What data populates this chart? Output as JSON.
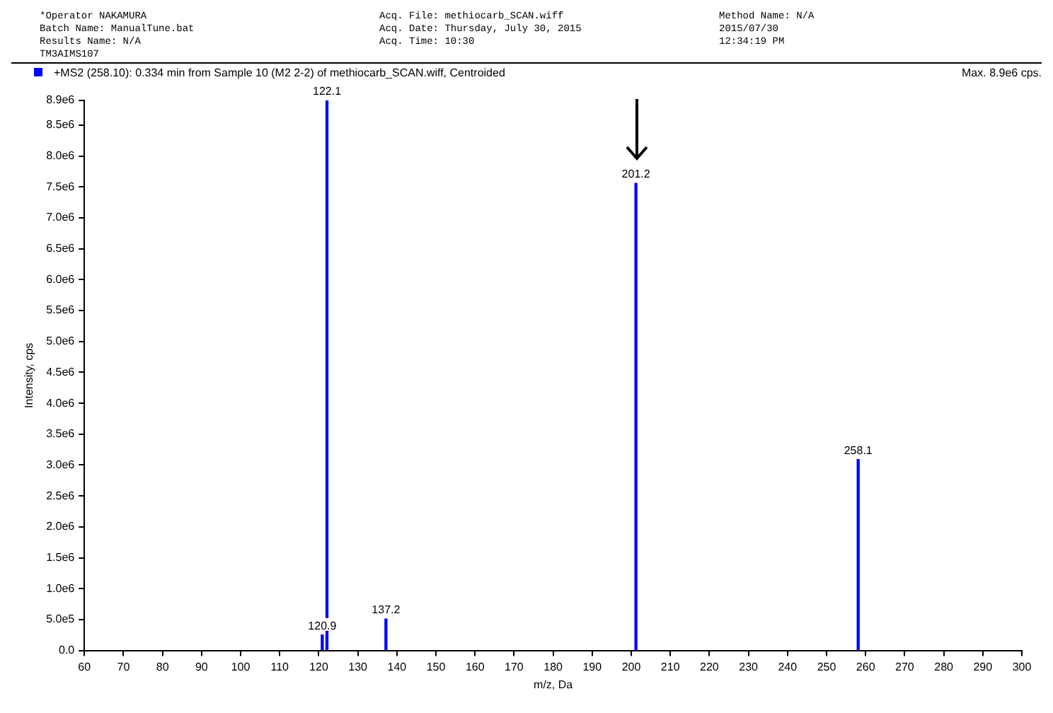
{
  "chart_data": {
    "type": "bar",
    "title": "+MS2 (258.10): 0.334 min from Sample 10 (M2 2-2) of methiocarb_SCAN.wiff, Centroided",
    "xlabel": "m/z, Da",
    "ylabel": "Intensity, cps",
    "annotations": [
      "*Operator NAKAMURA",
      "Acq. File: methiocarb_SCAN.wiff",
      "Method Name: N/A",
      "Batch Name: ManualTune.bat",
      "Acq. Date: Thursday, July 30, 2015",
      "2015/07/30",
      "Results Name: N/A",
      "Acq. Time: 10:30",
      "12:34:19 PM",
      "TM3AIMS107",
      "Max. 8.9e6 cps.",
      {
        "text": "120.9",
        "x": 120.9,
        "y": 250000
      },
      {
        "text": "122.1",
        "x": 122.1,
        "y": 8900000
      },
      {
        "text": "137.2",
        "x": 137.2,
        "y": 510000
      },
      {
        "text": "201.2",
        "x": 201.2,
        "y": 7560000
      },
      {
        "text": "258.1",
        "x": 258.1,
        "y": 3090000
      }
    ],
    "x": [
      120.9,
      122.1,
      137.2,
      201.2,
      258.1
    ],
    "values": [
      250000,
      8900000,
      510000,
      7560000,
      3090000
    ],
    "color": "#0000ff",
    "xlim": [
      60,
      300
    ],
    "xticks": [
      60,
      70,
      80,
      90,
      100,
      110,
      120,
      130,
      140,
      150,
      160,
      170,
      180,
      190,
      200,
      210,
      220,
      230,
      240,
      250,
      260,
      270,
      280,
      290,
      300
    ],
    "ylim": [
      0,
      8900000
    ],
    "yticks": [
      {
        "value": 0,
        "label": "0.0"
      },
      {
        "value": 500000,
        "label": "5.0e5"
      },
      {
        "value": 1000000,
        "label": "1.0e6"
      },
      {
        "value": 1500000,
        "label": "1.5e6"
      },
      {
        "value": 2000000,
        "label": "2.0e6"
      },
      {
        "value": 2500000,
        "label": "2.5e6"
      },
      {
        "value": 3000000,
        "label": "3.0e6"
      },
      {
        "value": 3500000,
        "label": "3.5e6"
      },
      {
        "value": 4000000,
        "label": "4.0e6"
      },
      {
        "value": 4500000,
        "label": "4.5e6"
      },
      {
        "value": 5000000,
        "label": "5.0e6"
      },
      {
        "value": 5500000,
        "label": "5.5e6"
      },
      {
        "value": 6000000,
        "label": "6.0e6"
      },
      {
        "value": 6500000,
        "label": "6.5e6"
      },
      {
        "value": 7000000,
        "label": "7.0e6"
      },
      {
        "value": 7500000,
        "label": "7.5e6"
      },
      {
        "value": 8000000,
        "label": "8.0e6"
      },
      {
        "value": 8500000,
        "label": "8.5e6"
      },
      {
        "value": 8900000,
        "label": "8.9e6"
      }
    ],
    "grid": false
  }
}
